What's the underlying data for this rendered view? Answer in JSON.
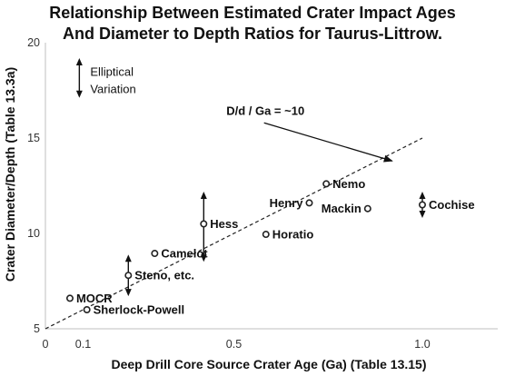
{
  "title_line1": "Relationship Between Estimated Crater Impact Ages",
  "title_line2": "And Diameter to Depth Ratios for Taurus-Littrow.",
  "chart_data": {
    "type": "scatter",
    "title": "Relationship Between Estimated Crater Impact Ages And Diameter to Depth Ratios for Taurus-Littrow.",
    "xlabel": "Deep Drill Core Source Crater Age (Ga) (Table 13.15)",
    "ylabel": "Crater Diameter/Depth (Table 13.3a)",
    "xlim": [
      0,
      1.2
    ],
    "ylim": [
      5,
      20
    ],
    "x_ticks": [
      {
        "value": 0,
        "label": "0"
      },
      {
        "value": 0.1,
        "label": "0.1"
      },
      {
        "value": 0.5,
        "label": "0.5"
      },
      {
        "value": 1.0,
        "label": "1.0"
      }
    ],
    "y_ticks": [
      {
        "value": 5,
        "label": "5"
      },
      {
        "value": 10,
        "label": "10"
      },
      {
        "value": 15,
        "label": "15"
      },
      {
        "value": 20,
        "label": "20"
      }
    ],
    "grid": false,
    "marker_color": "#222222",
    "points": [
      {
        "label": "MOCR",
        "x": 0.065,
        "y": 6.6,
        "label_side": "right"
      },
      {
        "label": "Sherlock-Powell",
        "x": 0.11,
        "y": 6.0,
        "label_side": "right"
      },
      {
        "label": "Steno, etc.",
        "x": 0.22,
        "y": 7.8,
        "label_side": "right"
      },
      {
        "label": "Camelot",
        "x": 0.29,
        "y": 8.95,
        "label_side": "right"
      },
      {
        "label": "Hess",
        "x": 0.42,
        "y": 10.5,
        "label_side": "right"
      },
      {
        "label": "Horatio",
        "x": 0.585,
        "y": 9.95,
        "label_side": "right"
      },
      {
        "label": "Henry",
        "x": 0.7,
        "y": 11.6,
        "label_side": "left"
      },
      {
        "label": "Nemo",
        "x": 0.745,
        "y": 12.6,
        "label_side": "right"
      },
      {
        "label": "Mackin",
        "x": 0.855,
        "y": 11.3,
        "label_side": "left"
      },
      {
        "label": "Cochise",
        "x": 1.0,
        "y": 11.5,
        "label_side": "right"
      }
    ],
    "error_bars": [
      {
        "x": 0.22,
        "y_low": 6.9,
        "y_high": 8.7
      },
      {
        "x": 0.42,
        "y_low": 8.7,
        "y_high": 12.0
      },
      {
        "x": 1.0,
        "y_low": 11.0,
        "y_high": 12.0
      }
    ],
    "trend_line": {
      "style": "dashed",
      "from": [
        0,
        5
      ],
      "to": [
        1.0,
        15
      ]
    },
    "legend_marker": {
      "x": 0.09,
      "y_low": 17.3,
      "y_high": 19.0
    },
    "annotations": {
      "legend_text_line1": "Elliptical",
      "legend_text_line2": "Variation",
      "trend_label": "D/d / Ga = ~10",
      "trend_arrow_from": [
        0.58,
        15.8
      ],
      "trend_arrow_to": [
        0.92,
        13.8
      ]
    }
  }
}
